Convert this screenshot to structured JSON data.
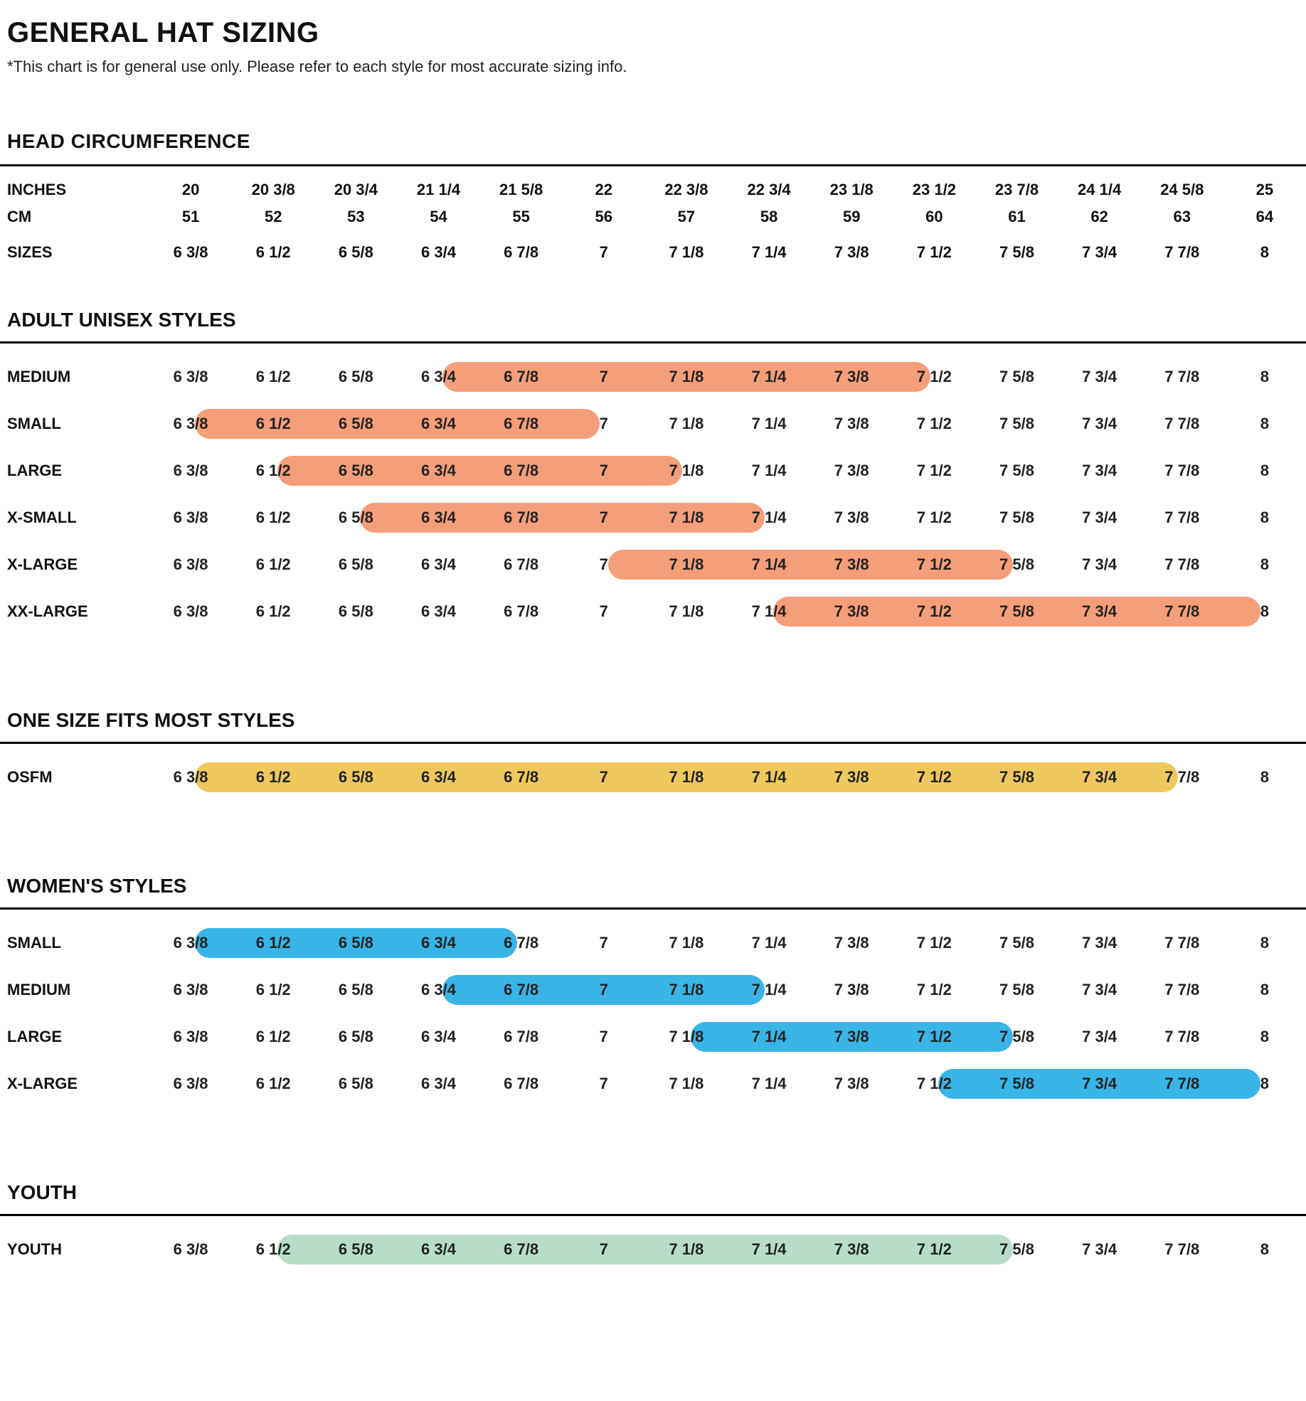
{
  "title": "GENERAL HAT SIZING",
  "disclaimer": "*This chart is for general use only. Please refer to each style for most accurate sizing info.",
  "head_section_title": "HEAD CIRCUMFERENCE",
  "row_labels": {
    "inches": "INCHES",
    "cm": "CM",
    "sizes": "SIZES"
  },
  "columns": {
    "inches": [
      "20",
      "20 3/8",
      "20 3/4",
      "21 1/4",
      "21 5/8",
      "22",
      "22 3/8",
      "22 3/4",
      "23 1/8",
      "23 1/2",
      "23 7/8",
      "24 1/4",
      "24 5/8",
      "25"
    ],
    "cm": [
      "51",
      "52",
      "53",
      "54",
      "55",
      "56",
      "57",
      "58",
      "59",
      "60",
      "61",
      "62",
      "63",
      "64"
    ],
    "sizes": [
      "6 3/8",
      "6 1/2",
      "6 5/8",
      "6 3/4",
      "6 7/8",
      "7",
      "7 1/8",
      "7 1/4",
      "7 3/8",
      "7 1/2",
      "7 5/8",
      "7 3/4",
      "7 7/8",
      "8"
    ]
  },
  "n_cols": 14,
  "colors": {
    "orange": "#f59e7a",
    "yellow": "#eec85c",
    "blue": "#39b4e6",
    "mint": "#b7ddc9",
    "text": "#111111",
    "rule": "#000000"
  },
  "groups": [
    {
      "title": "ADULT UNISEX STYLES",
      "colorKey": "orange",
      "rows": [
        {
          "label": "MEDIUM",
          "start": 4,
          "end": 9
        },
        {
          "label": "SMALL",
          "start": 1,
          "end": 5
        },
        {
          "label": "LARGE",
          "start": 2,
          "end": 6
        },
        {
          "label": "X-SMALL",
          "start": 3,
          "end": 7
        },
        {
          "label": "X-LARGE",
          "start": 6,
          "end": 10
        },
        {
          "label": "XX-LARGE",
          "start": 8,
          "end": 13
        }
      ]
    },
    {
      "title": "ONE SIZE FITS MOST STYLES",
      "colorKey": "yellow",
      "rows": [
        {
          "label": "OSFM",
          "start": 1,
          "end": 12
        }
      ]
    },
    {
      "title": "WOMEN'S STYLES",
      "colorKey": "blue",
      "rows": [
        {
          "label": "SMALL",
          "start": 1,
          "end": 4
        },
        {
          "label": "MEDIUM",
          "start": 4,
          "end": 7
        },
        {
          "label": "LARGE",
          "start": 7,
          "end": 10
        },
        {
          "label": "X-LARGE",
          "start": 10,
          "end": 13
        }
      ]
    },
    {
      "title": "YOUTH",
      "colorKey": "mint",
      "rows": [
        {
          "label": "YOUTH",
          "start": 2,
          "end": 10
        }
      ]
    }
  ]
}
